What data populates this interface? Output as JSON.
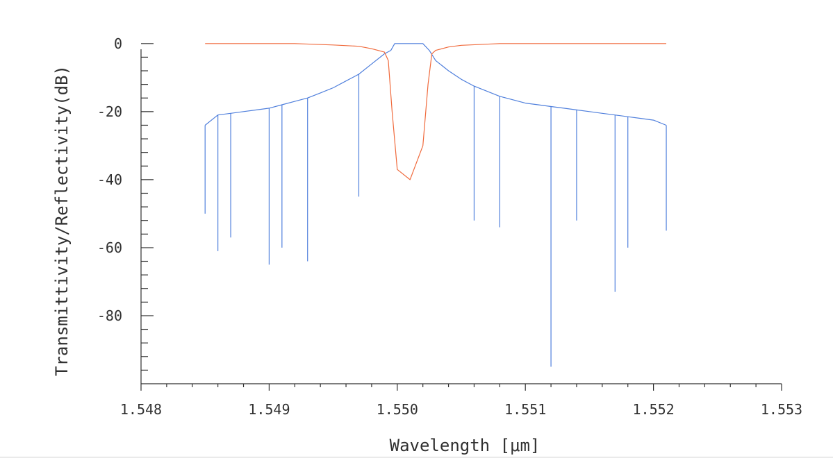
{
  "chart_data": {
    "type": "line",
    "xlabel": "Wavelength [μm]",
    "ylabel": "Transmittivity/Reflectivity(dB)",
    "xlim": [
      1.548,
      1.553
    ],
    "ylim": [
      -100,
      2
    ],
    "x_ticks": [
      1.548,
      1.549,
      1.55,
      1.551,
      1.552,
      1.553
    ],
    "x_tick_labels": [
      "1.548",
      "1.549",
      "1.550",
      "1.551",
      "1.552",
      "1.553"
    ],
    "y_ticks": [
      0,
      -20,
      -40,
      -60,
      -80
    ],
    "y_tick_labels": [
      "0",
      "-20",
      "-40",
      "-60",
      "-80"
    ],
    "grid": false,
    "colors": {
      "reflectivity": "#4f7fdc",
      "transmittivity": "#f06a3c",
      "axis": "#303030"
    },
    "series": [
      {
        "color": "#4f7fdc",
        "x": [
          1.5485,
          1.5486,
          1.5487,
          1.5488,
          1.5489,
          1.549,
          1.5491,
          1.5492,
          1.5493,
          1.5494,
          1.5495,
          1.5496,
          1.5497,
          1.5498,
          1.5499,
          1.54995,
          1.54998,
          1.55,
          1.5501,
          1.5502,
          1.55025,
          1.5503,
          1.5504,
          1.5505,
          1.5506,
          1.5507,
          1.5508,
          1.5509,
          1.551,
          1.5511,
          1.5512,
          1.5513,
          1.5514,
          1.5515,
          1.5516,
          1.5517,
          1.5518,
          1.5519,
          1.552,
          1.5521
        ],
        "y": [
          -24,
          -21,
          -20.5,
          -20,
          -19.5,
          -19,
          -18,
          -17,
          -16,
          -14.5,
          -13,
          -11,
          -9,
          -6,
          -3,
          -2,
          0,
          0,
          0,
          0,
          -2,
          -5,
          -8,
          -10.5,
          -12.5,
          -14,
          -15.5,
          -16.5,
          -17.5,
          -18,
          -18.5,
          -19,
          -19.5,
          -20,
          -20.5,
          -21,
          -21.5,
          -22,
          -22.5,
          -24
        ],
        "nulls": [
          {
            "x": 1.5485,
            "y": -50
          },
          {
            "x": 1.5486,
            "y": -61
          },
          {
            "x": 1.5487,
            "y": -57
          },
          {
            "x": 1.549,
            "y": -65
          },
          {
            "x": 1.5491,
            "y": -60
          },
          {
            "x": 1.5493,
            "y": -64
          },
          {
            "x": 1.5497,
            "y": -45
          },
          {
            "x": 1.5506,
            "y": -52
          },
          {
            "x": 1.5508,
            "y": -54
          },
          {
            "x": 1.5512,
            "y": -95
          },
          {
            "x": 1.5514,
            "y": -52
          },
          {
            "x": 1.5517,
            "y": -73
          },
          {
            "x": 1.5518,
            "y": -60
          },
          {
            "x": 1.5521,
            "y": -55
          }
        ]
      },
      {
        "color": "#f06a3c",
        "x": [
          1.5485,
          1.5492,
          1.5495,
          1.5497,
          1.5498,
          1.5499,
          1.54993,
          1.54996,
          1.55,
          1.5501,
          1.5502,
          1.55024,
          1.55027,
          1.5503,
          1.5504,
          1.5505,
          1.5508,
          1.5521
        ],
        "y": [
          0,
          0,
          -0.4,
          -0.8,
          -1.5,
          -2.5,
          -5,
          -20,
          -37,
          -40,
          -30,
          -12,
          -3,
          -2,
          -1,
          -0.5,
          0,
          0
        ]
      }
    ]
  }
}
